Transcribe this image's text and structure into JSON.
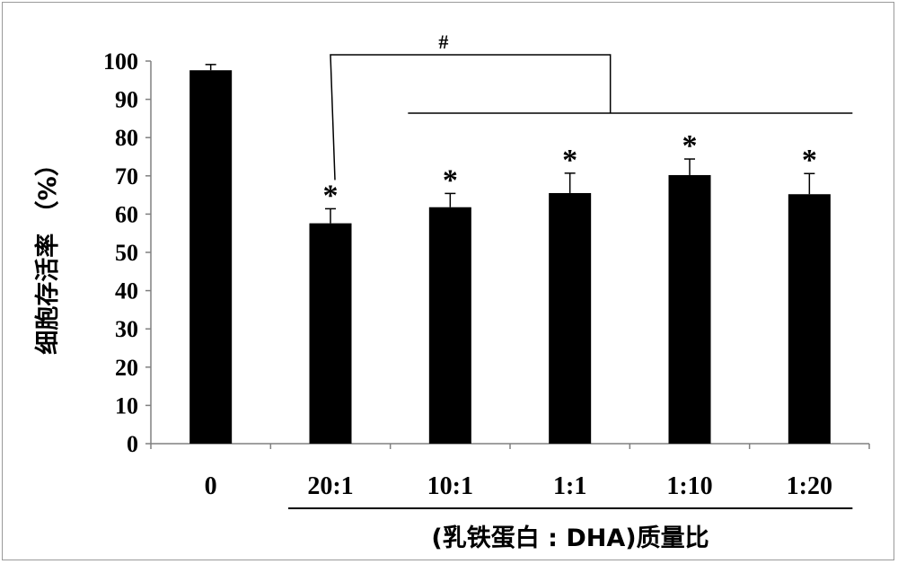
{
  "chart_data": {
    "type": "bar",
    "categories": [
      "0",
      "20:1",
      "10:1",
      "1:1",
      "1:10",
      "1:20"
    ],
    "values": [
      97.6,
      57.6,
      61.8,
      65.5,
      70.2,
      65.2
    ],
    "errors": [
      1.5,
      3.8,
      3.6,
      5.2,
      4.2,
      5.4
    ],
    "significance": [
      "",
      "*",
      "*",
      "*",
      "*",
      "*"
    ],
    "bracket_label": "#",
    "xlabel": "(乳铁蛋白 : DHA)质量比",
    "ylabel": "细胞存活率 （%）",
    "ylim": [
      0,
      100
    ],
    "yticks": [
      0,
      10,
      20,
      30,
      40,
      50,
      60,
      70,
      80,
      90,
      100
    ],
    "grid": false,
    "colors": {
      "bar": "#000000",
      "axis": "#808080",
      "text": "#000000"
    }
  }
}
